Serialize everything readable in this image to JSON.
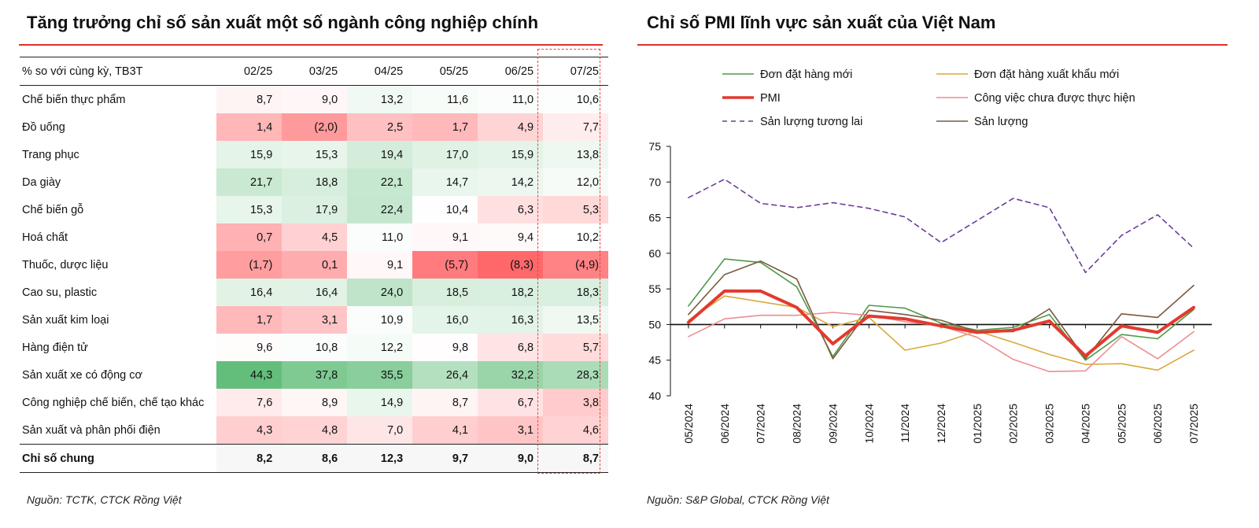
{
  "left_panel": {
    "title": "Tăng trưởng chỉ số sản xuất một số ngành công nghiệp chính",
    "source": "Nguồn: TCTK, CTCK Rồng Việt"
  },
  "right_panel": {
    "title": "Chỉ số PMI lĩnh vực sản xuất của Việt Nam",
    "source": "Nguồn: S&P Global, CTCK Rồng Việt"
  },
  "colors": {
    "accent": "#d9332b",
    "box": "#e0463c"
  },
  "chart_data": [
    {
      "type": "table",
      "header": [
        "% so với cùng kỳ, TB3T",
        "02/25",
        "03/25",
        "04/25",
        "05/25",
        "06/25",
        "07/25"
      ],
      "rows": [
        {
          "label": "Chế biến thực phẩm",
          "cells": [
            "8,7",
            "9,0",
            "13,2",
            "11,6",
            "11,0",
            "10,6"
          ],
          "values": [
            8.7,
            9.0,
            13.2,
            11.6,
            11.0,
            10.6
          ]
        },
        {
          "label": "Đồ uống",
          "cells": [
            "1,4",
            "(2,0)",
            "2,5",
            "1,7",
            "4,9",
            "7,7"
          ],
          "values": [
            1.4,
            -2.0,
            2.5,
            1.7,
            4.9,
            7.7
          ]
        },
        {
          "label": "Trang phục",
          "cells": [
            "15,9",
            "15,3",
            "19,4",
            "17,0",
            "15,9",
            "13,8"
          ],
          "values": [
            15.9,
            15.3,
            19.4,
            17.0,
            15.9,
            13.8
          ]
        },
        {
          "label": "Da giày",
          "cells": [
            "21,7",
            "18,8",
            "22,1",
            "14,7",
            "14,2",
            "12,0"
          ],
          "values": [
            21.7,
            18.8,
            22.1,
            14.7,
            14.2,
            12.0
          ]
        },
        {
          "label": "Chế biến gỗ",
          "cells": [
            "15,3",
            "17,9",
            "22,4",
            "10,4",
            "6,3",
            "5,3"
          ],
          "values": [
            15.3,
            17.9,
            22.4,
            10.4,
            6.3,
            5.3
          ]
        },
        {
          "label": "Hoá chất",
          "cells": [
            "0,7",
            "4,5",
            "11,0",
            "9,1",
            "9,4",
            "10,2"
          ],
          "values": [
            0.7,
            4.5,
            11.0,
            9.1,
            9.4,
            10.2
          ]
        },
        {
          "label": "Thuốc, dược liệu",
          "cells": [
            "(1,7)",
            "0,1",
            "9,1",
            "(5,7)",
            "(8,3)",
            "(4,9)"
          ],
          "values": [
            -1.7,
            0.1,
            9.1,
            -5.7,
            -8.3,
            -4.9
          ]
        },
        {
          "label": "Cao su, plastic",
          "cells": [
            "16,4",
            "16,4",
            "24,0",
            "18,5",
            "18,2",
            "18,3"
          ],
          "values": [
            16.4,
            16.4,
            24.0,
            18.5,
            18.2,
            18.3
          ]
        },
        {
          "label": "Sản xuất kim loại",
          "cells": [
            "1,7",
            "3,1",
            "10,9",
            "16,0",
            "16,3",
            "13,5"
          ],
          "values": [
            1.7,
            3.1,
            10.9,
            16.0,
            16.3,
            13.5
          ]
        },
        {
          "label": "Hàng điện tử",
          "cells": [
            "9,6",
            "10,8",
            "12,2",
            "9,8",
            "6,8",
            "5,7"
          ],
          "values": [
            9.6,
            10.8,
            12.2,
            9.8,
            6.8,
            5.7
          ]
        },
        {
          "label": "Sản xuất xe có động cơ",
          "cells": [
            "44,3",
            "37,8",
            "35,5",
            "26,4",
            "32,2",
            "28,3"
          ],
          "values": [
            44.3,
            37.8,
            35.5,
            26.4,
            32.2,
            28.3
          ]
        },
        {
          "label": "Công nghiệp chế biến, chế tạo khác",
          "cells": [
            "7,6",
            "8,9",
            "14,9",
            "8,7",
            "6,7",
            "3,8"
          ],
          "values": [
            7.6,
            8.9,
            14.9,
            8.7,
            6.7,
            3.8
          ]
        },
        {
          "label": "Sản xuất và phân phối điện",
          "cells": [
            "4,3",
            "4,8",
            "7,0",
            "4,1",
            "3,1",
            "4,6"
          ],
          "values": [
            4.3,
            4.8,
            7.0,
            4.1,
            3.1,
            4.6
          ]
        }
      ],
      "total": {
        "label": "Chỉ số chung",
        "cells": [
          "8,2",
          "8,6",
          "12,3",
          "9,7",
          "9,0",
          "8,7"
        ]
      },
      "highlight_column": "07/25"
    },
    {
      "type": "line",
      "title": "Chỉ số PMI lĩnh vực sản xuất của Việt Nam",
      "x": [
        "05/2024",
        "06/2024",
        "07/2024",
        "08/2024",
        "09/2024",
        "10/2024",
        "11/2024",
        "12/2024",
        "01/2025",
        "02/2025",
        "03/2025",
        "04/2025",
        "05/2025",
        "06/2025",
        "07/2025"
      ],
      "ylim": [
        40,
        75
      ],
      "yticks": [
        40,
        45,
        50,
        55,
        60,
        65,
        70,
        75
      ],
      "baseline": 50,
      "legend_position": "top",
      "series": [
        {
          "name": "Đơn đặt hàng mới",
          "color": "#4e9a49",
          "width": 1.6,
          "dash": "",
          "values": [
            52.6,
            59.2,
            58.7,
            55.3,
            45.5,
            52.7,
            52.3,
            50.2,
            49.2,
            49.6,
            51.4,
            45.0,
            48.6,
            48.0,
            52.1
          ]
        },
        {
          "name": "Đơn đặt hàng xuất khẩu mới",
          "color": "#d9a93c",
          "width": 1.6,
          "dash": "",
          "values": [
            50.6,
            54.0,
            53.2,
            52.4,
            49.7,
            51.0,
            46.4,
            47.4,
            49.1,
            47.5,
            45.8,
            44.4,
            44.5,
            43.6,
            46.4
          ]
        },
        {
          "name": "PMI",
          "color": "#e23a2e",
          "width": 4,
          "dash": "",
          "values": [
            50.3,
            54.7,
            54.7,
            52.4,
            47.3,
            51.2,
            50.8,
            49.8,
            48.9,
            49.2,
            50.5,
            45.6,
            49.8,
            48.9,
            52.4
          ]
        },
        {
          "name": "Công việc chưa được thực hiện",
          "color": "#ee8e8e",
          "width": 1.6,
          "dash": "",
          "values": [
            48.3,
            50.8,
            51.3,
            51.3,
            51.7,
            51.3,
            50.4,
            49.8,
            48.2,
            45.1,
            43.4,
            43.5,
            48.3,
            45.2,
            49.0
          ]
        },
        {
          "name": "Sản lượng tương lai",
          "color": "#6a3d9a",
          "width": 1.6,
          "dash": "6,5",
          "values": [
            67.8,
            70.4,
            67.0,
            66.4,
            67.1,
            66.3,
            65.1,
            61.5,
            64.6,
            67.7,
            66.4,
            57.3,
            62.5,
            65.4,
            60.7
          ]
        },
        {
          "name": "Sản lượng",
          "color": "#7a5a3e",
          "width": 1.6,
          "dash": "",
          "values": [
            51.4,
            57.0,
            58.9,
            56.4,
            45.2,
            52.0,
            51.4,
            50.6,
            49.0,
            49.0,
            52.2,
            45.2,
            51.5,
            51.0,
            55.5
          ]
        }
      ]
    }
  ]
}
